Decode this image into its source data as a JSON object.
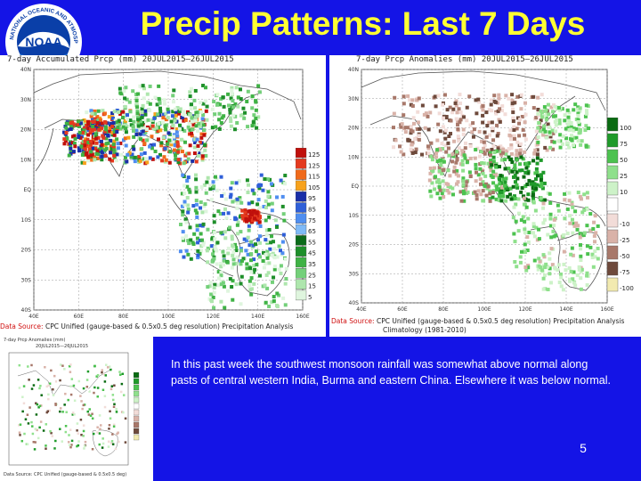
{
  "slide": {
    "title": "Precip Patterns: Last 7 Days",
    "summary": "In this past week the southwest monsoon rainfall was somewhat above normal along pasts of central western India, Burma and eastern China.  Elsewhere it was below normal.",
    "page_number": "5",
    "logo": {
      "icon": "noaa-logo",
      "text": "NOAA",
      "ring_text": "NATIONAL OCEANIC AND ATMOSPHERIC ADMINISTRATION",
      "colors": {
        "outer": "#ffffff",
        "inner": "#0a3fa8",
        "bird": "#ffffff"
      }
    }
  },
  "maps": {
    "accumulated": {
      "title": "7-day Accumulated Prcp (mm)  20JUL2015—26JUL2015",
      "source_label": "Data Source:",
      "source_text": "CPC Unified (gauge-based & 0.5x0.5 deg resolution) Precipitation Analysis",
      "lat_labels": [
        "40N",
        "30N",
        "20N",
        "10N",
        "EQ",
        "10S",
        "20S",
        "30S",
        "40S"
      ],
      "lon_labels": [
        "40E",
        "60E",
        "80E",
        "100E",
        "120E",
        "140E",
        "160E"
      ],
      "legend": [
        {
          "label": "125",
          "color": "#c0100c"
        },
        {
          "label": "125",
          "color": "#e43a1e"
        },
        {
          "label": "115",
          "color": "#f06a1a"
        },
        {
          "label": "105",
          "color": "#f7a21c"
        },
        {
          "label": "95",
          "color": "#1a2fa8"
        },
        {
          "label": "85",
          "color": "#2f5fd8"
        },
        {
          "label": "75",
          "color": "#4f8ef0"
        },
        {
          "label": "65",
          "color": "#7fbaf7"
        },
        {
          "label": "55",
          "color": "#0c6b1a"
        },
        {
          "label": "45",
          "color": "#1e8f2a"
        },
        {
          "label": "35",
          "color": "#3fb245"
        },
        {
          "label": "25",
          "color": "#74d07a"
        },
        {
          "label": "15",
          "color": "#aee6ad"
        },
        {
          "label": "5",
          "color": "#dff5de"
        }
      ]
    },
    "anomalies": {
      "title": "7-day Prcp Anomalies (mm)  20JUL2015—26JUL2015",
      "source_label": "Data Source:",
      "source_text": "CPC Unified (gauge-based & 0.5x0.5 deg resolution) Precipitation Analysis",
      "source_text_2": "Climatology (1981-2010)",
      "lat_labels": [
        "40N",
        "30N",
        "20N",
        "10N",
        "EQ",
        "10S",
        "20S",
        "30S",
        "40S"
      ],
      "lon_labels": [
        "40E",
        "60E",
        "80E",
        "100E",
        "120E",
        "140E",
        "160E"
      ],
      "legend": [
        {
          "label": "100",
          "color": "#0a6b12"
        },
        {
          "label": "75",
          "color": "#1f9a2a"
        },
        {
          "label": "50",
          "color": "#4cc24f"
        },
        {
          "label": "25",
          "color": "#8fe08c"
        },
        {
          "label": "10",
          "color": "#cdf2c8"
        },
        {
          "label": "",
          "color": "#ffffff"
        },
        {
          "label": "-10",
          "color": "#f2dcd8"
        },
        {
          "label": "-25",
          "color": "#d9b2a8"
        },
        {
          "label": "-50",
          "color": "#a8786a"
        },
        {
          "label": "-75",
          "color": "#6e4a3c"
        },
        {
          "label": "-100",
          "color": "#f2eab0"
        }
      ]
    },
    "thumbnail": {
      "title": "7-day Prcp Anomalies (mm)",
      "subtitle": "20JUL2015—26JUL2015",
      "source_text": "Data Source: CPC Unified (gauge-based & 0.5x0.5 deg)"
    }
  },
  "colors": {
    "background": "#1414e6",
    "title": "#ffff33",
    "text": "#ffffff",
    "land": "#ffffff",
    "coast": "#555555"
  }
}
